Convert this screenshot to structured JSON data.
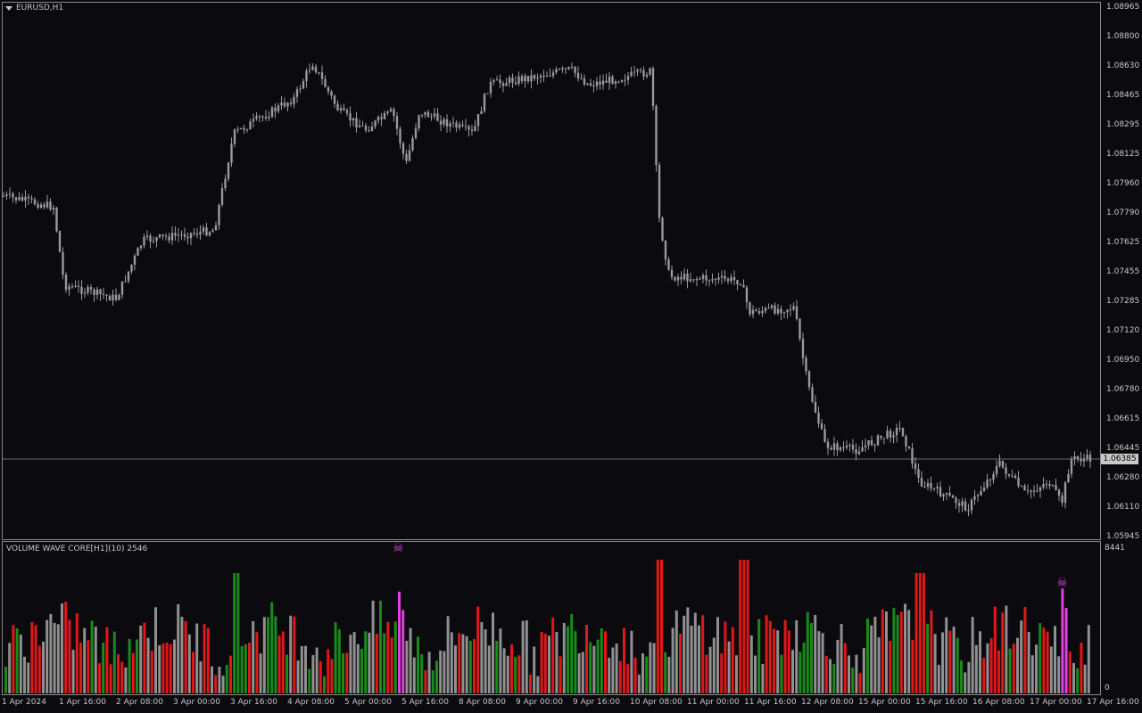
{
  "main_pane": {
    "symbol_label": "EURUSD,H1",
    "price_scale": [
      "1.08965",
      "1.08800",
      "1.08630",
      "1.08465",
      "1.08295",
      "1.08125",
      "1.07960",
      "1.07790",
      "1.07625",
      "1.07455",
      "1.07285",
      "1.07120",
      "1.06950",
      "1.06780",
      "1.06615",
      "1.06445",
      "1.06280",
      "1.06110",
      "1.05945"
    ],
    "current_price": "1.06385",
    "candle_color": "#9a9a9a"
  },
  "indicator_pane": {
    "title": "VOLUME WAVE CORE[H1](10) 2546",
    "scale_max": "8441",
    "scale_min": "0",
    "colors": {
      "up": "#1a8a1a",
      "down": "#e01818",
      "neutral": "#909090",
      "spike": "#e040e0"
    },
    "signal_icon": "skull-crossbones-icon"
  },
  "time_axis": [
    "1 Apr 2024",
    "1 Apr 16:00",
    "2 Apr 08:00",
    "3 Apr 00:00",
    "3 Apr 16:00",
    "4 Apr 08:00",
    "5 Apr 00:00",
    "5 Apr 16:00",
    "8 Apr 08:00",
    "9 Apr 00:00",
    "9 Apr 16:00",
    "10 Apr 08:00",
    "11 Apr 00:00",
    "11 Apr 16:00",
    "12 Apr 08:00",
    "15 Apr 00:00",
    "15 Apr 16:00",
    "16 Apr 08:00",
    "17 Apr 00:00",
    "17 Apr 16:00"
  ]
}
